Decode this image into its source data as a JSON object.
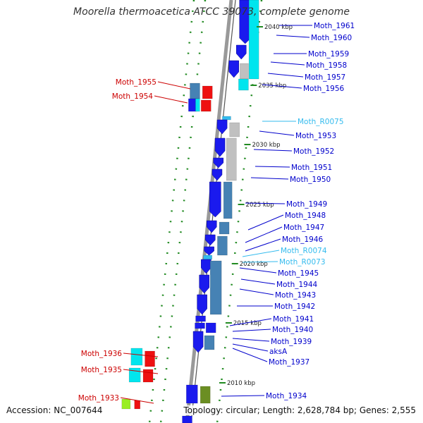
{
  "title": "Moorella thermoacetica ATCC 39073, complete genome",
  "footer": {
    "accession": "Accession: NC_007644",
    "topology": "Topology: circular; Length: 2,628,784 bp; Genes: 2,555"
  },
  "colors": {
    "plus_label": "#cc0000",
    "minus_label": "#0000cc",
    "rna_label": "#33bbee",
    "cds_blue": "#1a1aee",
    "steel_blue": "#4682b4",
    "cyan": "#00e5ee",
    "red": "#ee1111",
    "olive": "#6b8e23",
    "lime": "#99ee22",
    "gray": "#c0c0c0",
    "ticks": "#228b22",
    "backbone": "#999999"
  },
  "bp_ticks": [
    "2040 kbp",
    "2035 kbp",
    "2030 kbp",
    "2025 kbp",
    "2020 kbp",
    "2015 kbp",
    "2010 kbp"
  ],
  "left_labels": [
    "Moth_1955",
    "Moth_1954",
    "Moth_1936",
    "Moth_1935",
    "Moth_1933"
  ],
  "right_labels": [
    {
      "text": "Moth_1961",
      "kind": "gene"
    },
    {
      "text": "Moth_1960",
      "kind": "gene"
    },
    {
      "text": "Moth_1959",
      "kind": "gene"
    },
    {
      "text": "Moth_1958",
      "kind": "gene"
    },
    {
      "text": "Moth_1957",
      "kind": "gene"
    },
    {
      "text": "Moth_1956",
      "kind": "gene"
    },
    {
      "text": "Moth_R0075",
      "kind": "rna"
    },
    {
      "text": "Moth_1953",
      "kind": "gene"
    },
    {
      "text": "Moth_1952",
      "kind": "gene"
    },
    {
      "text": "Moth_1951",
      "kind": "gene"
    },
    {
      "text": "Moth_1950",
      "kind": "gene"
    },
    {
      "text": "Moth_1949",
      "kind": "gene"
    },
    {
      "text": "Moth_1948",
      "kind": "gene"
    },
    {
      "text": "Moth_1947",
      "kind": "gene"
    },
    {
      "text": "Moth_1946",
      "kind": "gene"
    },
    {
      "text": "Moth_R0074",
      "kind": "rna"
    },
    {
      "text": "Moth_R0073",
      "kind": "rna"
    },
    {
      "text": "Moth_1945",
      "kind": "gene"
    },
    {
      "text": "Moth_1944",
      "kind": "gene"
    },
    {
      "text": "Moth_1943",
      "kind": "gene"
    },
    {
      "text": "Moth_1942",
      "kind": "gene"
    },
    {
      "text": "Moth_1941",
      "kind": "gene"
    },
    {
      "text": "Moth_1940",
      "kind": "gene"
    },
    {
      "text": "Moth_1939",
      "kind": "gene"
    },
    {
      "text": "aksA",
      "kind": "gene"
    },
    {
      "text": "Moth_1937",
      "kind": "gene"
    },
    {
      "text": "Moth_1934",
      "kind": "gene"
    }
  ]
}
